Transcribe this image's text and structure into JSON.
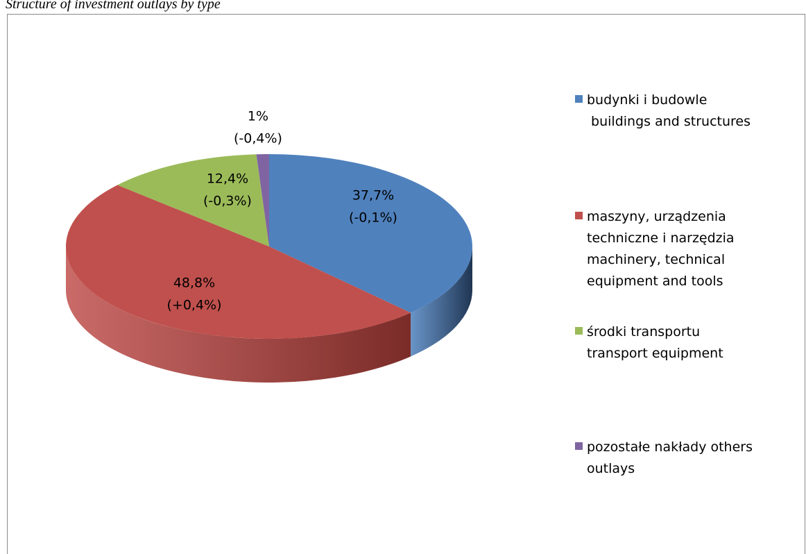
{
  "chart_data": {
    "type": "pie",
    "title": "Structure of investment outlays by type",
    "categories": [
      "budynki i budowle\n buildings and structures",
      "maszyny, urządzenia\ntechniczne i narzędzia\nmachinery, technical\nequipment and tools",
      "środki transportu\ntransport equipment",
      "pozostałe nakłady others\noutlays"
    ],
    "values": [
      37.7,
      48.8,
      12.4,
      1
    ],
    "value_labels": [
      "37,7%",
      "48,8%",
      "12,4%",
      "1%"
    ],
    "change_labels": [
      "(-0,1%)",
      "(+0,4%)",
      "(-0,3%)",
      "(-0,4%)"
    ],
    "colors": [
      "#4f81bd",
      "#c0504d",
      "#9bbb59",
      "#8064a2"
    ],
    "side_colors": [
      "#1f3552",
      "#7a2b28",
      "#5e7434",
      "#4c3b63"
    ],
    "legend": "right"
  }
}
